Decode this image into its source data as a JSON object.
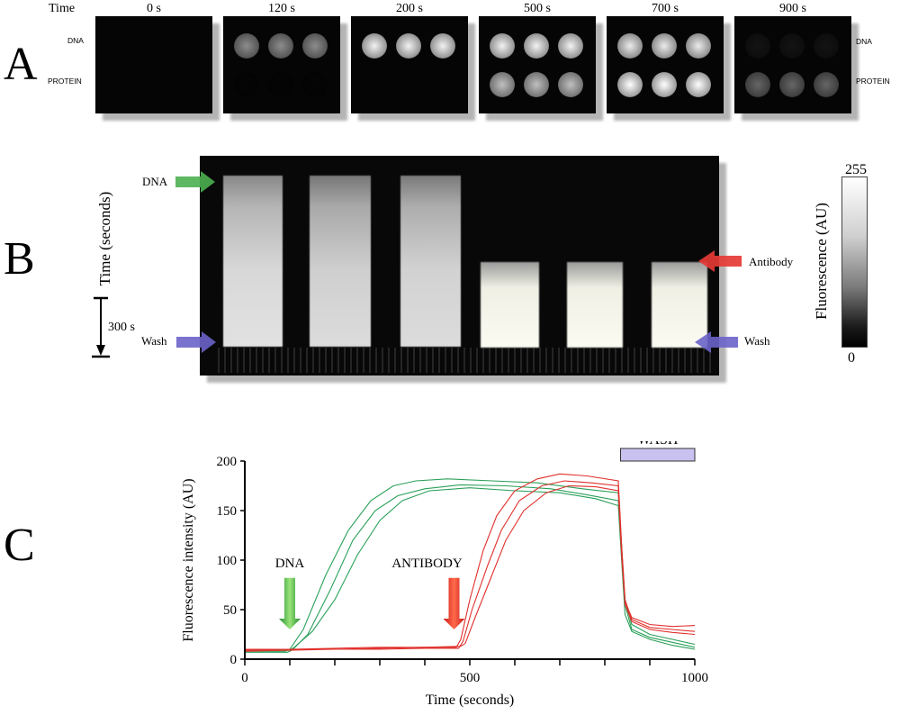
{
  "panel_a": {
    "letter": "A",
    "time_label": "Time",
    "frames": [
      {
        "time": "0 s",
        "dna_level": 0.0,
        "protein_level": 0.0
      },
      {
        "time": "120 s",
        "dna_level": 0.55,
        "protein_level": 0.02
      },
      {
        "time": "200 s",
        "dna_level": 0.95,
        "protein_level": 0.0
      },
      {
        "time": "500 s",
        "dna_level": 0.95,
        "protein_level": 0.75
      },
      {
        "time": "700 s",
        "dna_level": 0.92,
        "protein_level": 1.0
      },
      {
        "time": "900 s",
        "dna_level": 0.08,
        "protein_level": 0.4
      }
    ],
    "left_labels": {
      "dna": "DNA",
      "protein": "PROTEIN"
    },
    "right_labels": {
      "dna": "DNA",
      "protein": "PROTEIN"
    },
    "colors": {
      "dna": "#2db82d",
      "protein": "#e8452a"
    }
  },
  "panel_b": {
    "letter": "B",
    "y_axis_label": "Time (seconds)",
    "scale_bar_label": "300 s",
    "arrows": {
      "dna": "DNA",
      "wash_left": "Wash",
      "antibody": "Antibody",
      "wash_right": "Wash"
    },
    "colorbar": {
      "label": "Fluorescence (AU)",
      "max": "255",
      "min": "0"
    },
    "arrow_colors": {
      "dna": "#4caf50",
      "wash": "#6a63c9",
      "antibody": "#e53935"
    }
  },
  "panel_c": {
    "letter": "C",
    "wash_label": "WASH",
    "wash_color": "#c9c1ef",
    "dna_arrow_label": "DNA",
    "antibody_arrow_label": "ANTIBODY"
  },
  "chart_data": {
    "type": "line",
    "xlabel": "Time (seconds)",
    "ylabel": "Fluorescence intensity (AU)",
    "xlim": [
      0,
      1000
    ],
    "ylim": [
      0,
      200
    ],
    "xticks": [
      0,
      500,
      1000
    ],
    "yticks": [
      0,
      50,
      100,
      150,
      200
    ],
    "series": [
      {
        "color": "#2aa05a",
        "x": [
          0,
          90,
          100,
          130,
          180,
          230,
          280,
          330,
          380,
          450,
          550,
          650,
          750,
          830,
          838,
          845,
          860,
          900,
          950,
          1000
        ],
        "y": [
          8,
          8,
          10,
          30,
          85,
          130,
          160,
          175,
          180,
          182,
          180,
          178,
          172,
          168,
          110,
          60,
          35,
          25,
          20,
          15
        ]
      },
      {
        "color": "#2aa05a",
        "x": [
          0,
          95,
          105,
          140,
          190,
          240,
          290,
          340,
          400,
          480,
          580,
          680,
          760,
          830,
          838,
          845,
          860,
          900,
          950,
          1000
        ],
        "y": [
          7,
          7,
          9,
          25,
          70,
          120,
          150,
          165,
          172,
          176,
          175,
          172,
          166,
          160,
          100,
          55,
          30,
          22,
          17,
          12
        ]
      },
      {
        "color": "#2aa05a",
        "x": [
          0,
          100,
          110,
          150,
          200,
          250,
          300,
          350,
          410,
          500,
          600,
          700,
          780,
          830,
          838,
          845,
          860,
          900,
          950,
          1000
        ],
        "y": [
          9,
          9,
          12,
          28,
          60,
          105,
          140,
          160,
          170,
          173,
          170,
          168,
          162,
          155,
          95,
          45,
          28,
          20,
          14,
          10
        ]
      },
      {
        "color": "#e0302c",
        "x": [
          0,
          100,
          200,
          300,
          400,
          470,
          480,
          500,
          530,
          560,
          600,
          650,
          700,
          760,
          830,
          838,
          845,
          860,
          900,
          950,
          1000
        ],
        "y": [
          9,
          10,
          10,
          11,
          12,
          12,
          20,
          60,
          110,
          145,
          170,
          182,
          187,
          185,
          180,
          110,
          60,
          40,
          32,
          30,
          28
        ]
      },
      {
        "color": "#e0302c",
        "x": [
          0,
          100,
          200,
          300,
          400,
          475,
          485,
          505,
          540,
          570,
          610,
          660,
          710,
          770,
          830,
          838,
          845,
          860,
          900,
          950,
          1000
        ],
        "y": [
          8,
          9,
          10,
          10,
          11,
          11,
          18,
          50,
          95,
          130,
          160,
          175,
          180,
          178,
          175,
          105,
          55,
          38,
          30,
          27,
          25
        ]
      },
      {
        "color": "#e0302c",
        "x": [
          0,
          100,
          200,
          300,
          400,
          480,
          490,
          510,
          545,
          580,
          620,
          670,
          720,
          780,
          830,
          838,
          845,
          860,
          900,
          950,
          1000
        ],
        "y": [
          10,
          10,
          11,
          12,
          12,
          13,
          16,
          40,
          80,
          120,
          150,
          168,
          175,
          174,
          170,
          100,
          58,
          42,
          35,
          33,
          34
        ]
      }
    ]
  }
}
